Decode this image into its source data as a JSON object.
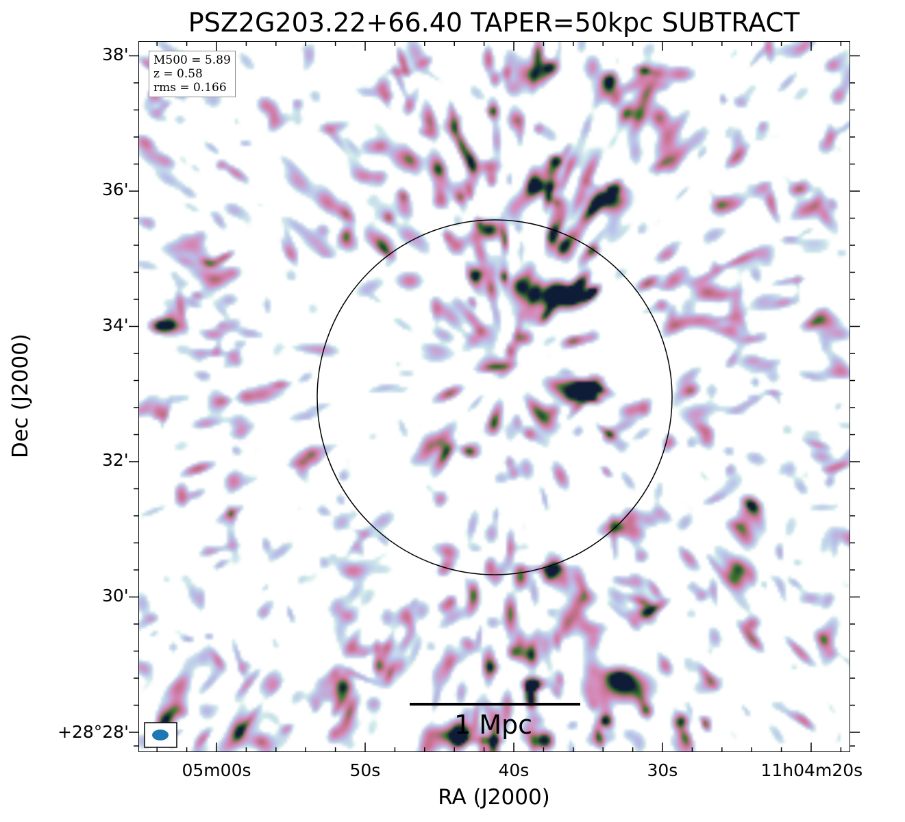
{
  "chart_data": {
    "type": "heatmap",
    "title": "PSZ2G203.22+66.40 TAPER=50kpc SUBTRACT",
    "xlabel": "RA (J2000)",
    "ylabel": "Dec (J2000)",
    "x_ticks": [
      "05m00s",
      "50s",
      "40s",
      "30s",
      "11h04m20s"
    ],
    "y_ticks": [
      "38'",
      "36'",
      "34'",
      "32'",
      "30'",
      "+28°28'"
    ],
    "annotation": {
      "m500": "M500 = 5.89",
      "z": "z = 0.58",
      "rms": "rms = 0.166"
    },
    "scale_bar": "1 Mpc",
    "colormap": [
      "#ffffff",
      "#cfeaea",
      "#b8bfea",
      "#d68bbb",
      "#c46f8a",
      "#3e7d2e",
      "#0f1c38"
    ],
    "beam_color": "#1f77b4",
    "circle": "R500 aperture",
    "grid": false
  }
}
